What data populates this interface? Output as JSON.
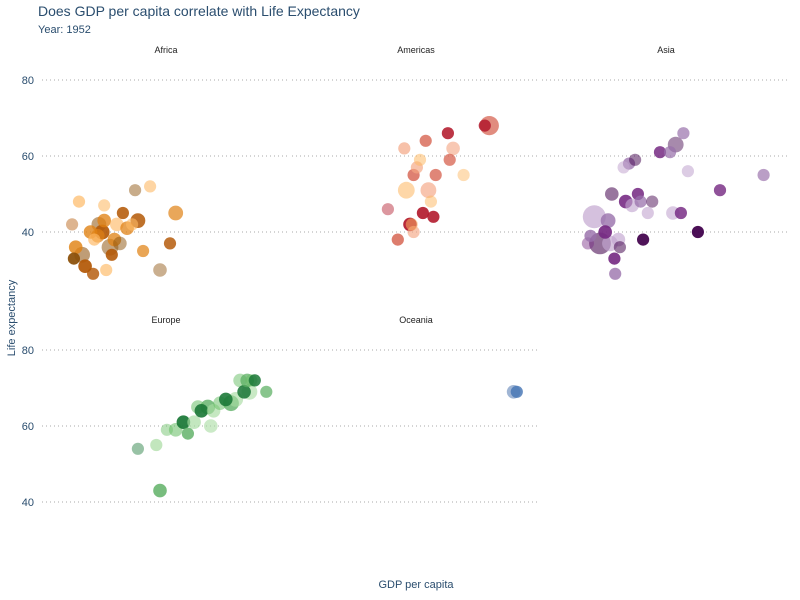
{
  "title": "Does GDP per capita correlate with Life Expectancy",
  "subtitle": "Year: 1952",
  "chart_data": {
    "type": "scatter",
    "title": "Does GDP per capita correlate with Life Expectancy",
    "subtitle": "Year: 1952",
    "xlabel": "GDP per capita",
    "ylabel": "Life expectancy",
    "x_scale": "log",
    "xlim": [
      200,
      14000
    ],
    "ylim": [
      25,
      85
    ],
    "yticks": [
      40,
      60,
      80
    ],
    "grid": true,
    "grid_style": "dotted horizontal",
    "legend": "none",
    "facets": [
      "Africa",
      "Americas",
      "Asia",
      "Europe",
      "Oceania"
    ],
    "point_encoding": "bubble size = population; fill = country within continent",
    "series": [
      {
        "name": "Africa",
        "colors": [
          "#b35806",
          "#e08214",
          "#fdb863",
          "#8c510a"
        ],
        "points": [
          {
            "x": 300,
            "y": 42,
            "s": 2
          },
          {
            "x": 320,
            "y": 36,
            "s": 3
          },
          {
            "x": 340,
            "y": 48,
            "s": 2
          },
          {
            "x": 360,
            "y": 34,
            "s": 5
          },
          {
            "x": 380,
            "y": 31,
            "s": 3
          },
          {
            "x": 420,
            "y": 40,
            "s": 3
          },
          {
            "x": 450,
            "y": 38,
            "s": 2
          },
          {
            "x": 490,
            "y": 42,
            "s": 4
          },
          {
            "x": 520,
            "y": 40,
            "s": 4
          },
          {
            "x": 540,
            "y": 43,
            "s": 3
          },
          {
            "x": 560,
            "y": 30,
            "s": 2
          },
          {
            "x": 600,
            "y": 36,
            "s": 6
          },
          {
            "x": 620,
            "y": 34,
            "s": 2
          },
          {
            "x": 650,
            "y": 38,
            "s": 3
          },
          {
            "x": 680,
            "y": 42,
            "s": 3
          },
          {
            "x": 720,
            "y": 37,
            "s": 3
          },
          {
            "x": 760,
            "y": 45,
            "s": 2
          },
          {
            "x": 820,
            "y": 41,
            "s": 3
          },
          {
            "x": 900,
            "y": 42,
            "s": 2
          },
          {
            "x": 950,
            "y": 51,
            "s": 2
          },
          {
            "x": 1000,
            "y": 43,
            "s": 4
          },
          {
            "x": 1100,
            "y": 35,
            "s": 2
          },
          {
            "x": 1250,
            "y": 52,
            "s": 2
          },
          {
            "x": 1500,
            "y": 30,
            "s": 3
          },
          {
            "x": 1800,
            "y": 37,
            "s": 2
          },
          {
            "x": 2000,
            "y": 45,
            "s": 4
          },
          {
            "x": 540,
            "y": 47,
            "s": 2
          },
          {
            "x": 310,
            "y": 33,
            "s": 2
          },
          {
            "x": 440,
            "y": 29,
            "s": 2
          },
          {
            "x": 480,
            "y": 39,
            "s": 3
          }
        ]
      },
      {
        "name": "Americas",
        "colors": [
          "#b2182b",
          "#d6604d",
          "#f4a582",
          "#fdb863"
        ],
        "points": [
          {
            "x": 1000,
            "y": 46,
            "s": 2
          },
          {
            "x": 1200,
            "y": 38,
            "s": 2
          },
          {
            "x": 1350,
            "y": 62,
            "s": 2
          },
          {
            "x": 1400,
            "y": 51,
            "s": 6
          },
          {
            "x": 1500,
            "y": 42,
            "s": 3
          },
          {
            "x": 1600,
            "y": 55,
            "s": 2
          },
          {
            "x": 1700,
            "y": 57,
            "s": 2
          },
          {
            "x": 1800,
            "y": 59,
            "s": 2
          },
          {
            "x": 1900,
            "y": 45,
            "s": 2
          },
          {
            "x": 2000,
            "y": 64,
            "s": 2
          },
          {
            "x": 2100,
            "y": 51,
            "s": 5
          },
          {
            "x": 2200,
            "y": 48,
            "s": 2
          },
          {
            "x": 2300,
            "y": 44,
            "s": 2
          },
          {
            "x": 2400,
            "y": 55,
            "s": 2
          },
          {
            "x": 1600,
            "y": 40,
            "s": 2
          },
          {
            "x": 1550,
            "y": 42,
            "s": 2
          },
          {
            "x": 3000,
            "y": 66,
            "s": 2
          },
          {
            "x": 3100,
            "y": 59,
            "s": 2
          },
          {
            "x": 3300,
            "y": 62,
            "s": 3
          },
          {
            "x": 4000,
            "y": 55,
            "s": 2
          },
          {
            "x": 5900,
            "y": 68,
            "s": 2
          },
          {
            "x": 6400,
            "y": 68,
            "s": 9
          }
        ]
      },
      {
        "name": "Asia",
        "colors": [
          "#762a83",
          "#9970ab",
          "#c2a5cf",
          "#40004b"
        ],
        "points": [
          {
            "x": 400,
            "y": 37,
            "s": 2
          },
          {
            "x": 420,
            "y": 39,
            "s": 2
          },
          {
            "x": 450,
            "y": 44,
            "s": 15
          },
          {
            "x": 500,
            "y": 37,
            "s": 13
          },
          {
            "x": 550,
            "y": 40,
            "s": 3
          },
          {
            "x": 580,
            "y": 43,
            "s": 4
          },
          {
            "x": 600,
            "y": 37,
            "s": 5
          },
          {
            "x": 620,
            "y": 50,
            "s": 3
          },
          {
            "x": 650,
            "y": 33,
            "s": 2
          },
          {
            "x": 660,
            "y": 29,
            "s": 2
          },
          {
            "x": 700,
            "y": 38,
            "s": 3
          },
          {
            "x": 720,
            "y": 36,
            "s": 2
          },
          {
            "x": 800,
            "y": 48,
            "s": 3
          },
          {
            "x": 850,
            "y": 58,
            "s": 2
          },
          {
            "x": 900,
            "y": 47,
            "s": 3
          },
          {
            "x": 950,
            "y": 59,
            "s": 2
          },
          {
            "x": 1000,
            "y": 50,
            "s": 2
          },
          {
            "x": 1050,
            "y": 48,
            "s": 2
          },
          {
            "x": 1200,
            "y": 45,
            "s": 2
          },
          {
            "x": 1300,
            "y": 48,
            "s": 2
          },
          {
            "x": 1500,
            "y": 61,
            "s": 2
          },
          {
            "x": 1800,
            "y": 61,
            "s": 2
          },
          {
            "x": 1900,
            "y": 45,
            "s": 3
          },
          {
            "x": 2000,
            "y": 63,
            "s": 5
          },
          {
            "x": 2200,
            "y": 45,
            "s": 2
          },
          {
            "x": 2300,
            "y": 66,
            "s": 2
          },
          {
            "x": 2500,
            "y": 56,
            "s": 2
          },
          {
            "x": 3000,
            "y": 40,
            "s": 2
          },
          {
            "x": 4500,
            "y": 51,
            "s": 2
          },
          {
            "x": 10000,
            "y": 55,
            "s": 2
          },
          {
            "x": 770,
            "y": 57,
            "s": 2
          },
          {
            "x": 1100,
            "y": 38,
            "s": 2
          }
        ]
      },
      {
        "name": "Europe",
        "colors": [
          "#1b7837",
          "#5aae61",
          "#a6dba0",
          "#66bd63"
        ],
        "points": [
          {
            "x": 1000,
            "y": 54,
            "s": 2
          },
          {
            "x": 1500,
            "y": 43,
            "s": 3
          },
          {
            "x": 1400,
            "y": 55,
            "s": 2
          },
          {
            "x": 2000,
            "y": 59,
            "s": 3
          },
          {
            "x": 2300,
            "y": 61,
            "s": 3
          },
          {
            "x": 2500,
            "y": 58,
            "s": 2
          },
          {
            "x": 2800,
            "y": 61,
            "s": 3
          },
          {
            "x": 3000,
            "y": 65,
            "s": 3
          },
          {
            "x": 3200,
            "y": 64,
            "s": 3
          },
          {
            "x": 3600,
            "y": 65,
            "s": 4
          },
          {
            "x": 4000,
            "y": 64,
            "s": 3
          },
          {
            "x": 4500,
            "y": 66,
            "s": 3
          },
          {
            "x": 5000,
            "y": 67,
            "s": 3
          },
          {
            "x": 5500,
            "y": 66,
            "s": 5
          },
          {
            "x": 6000,
            "y": 67,
            "s": 4
          },
          {
            "x": 6500,
            "y": 72,
            "s": 3
          },
          {
            "x": 7000,
            "y": 69,
            "s": 3
          },
          {
            "x": 7400,
            "y": 72,
            "s": 3
          },
          {
            "x": 7700,
            "y": 69,
            "s": 5
          },
          {
            "x": 8000,
            "y": 72,
            "s": 2
          },
          {
            "x": 8500,
            "y": 72,
            "s": 2
          },
          {
            "x": 10500,
            "y": 69,
            "s": 2
          },
          {
            "x": 3800,
            "y": 60,
            "s": 3
          },
          {
            "x": 1700,
            "y": 59,
            "s": 2
          }
        ]
      },
      {
        "name": "Oceania",
        "colors": [
          "#2c5aa0",
          "#4575b4"
        ],
        "points": [
          {
            "x": 10000,
            "y": 69,
            "s": 3
          },
          {
            "x": 10600,
            "y": 69,
            "s": 2
          }
        ]
      }
    ]
  }
}
